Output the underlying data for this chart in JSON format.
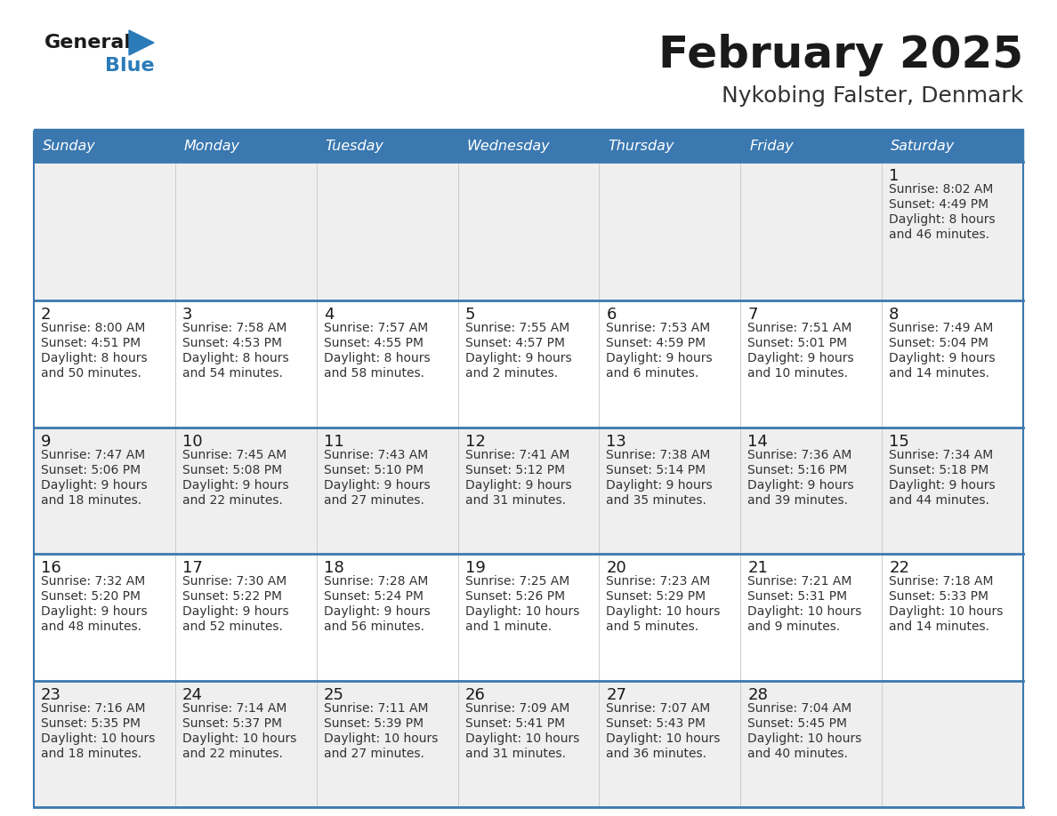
{
  "title": "February 2025",
  "subtitle": "Nykobing Falster, Denmark",
  "header_bg": "#3B78B0",
  "header_text": "#FFFFFF",
  "day_names": [
    "Sunday",
    "Monday",
    "Tuesday",
    "Wednesday",
    "Thursday",
    "Friday",
    "Saturday"
  ],
  "row_bg_even": "#EFEFEF",
  "row_bg_odd": "#FFFFFF",
  "border_color": "#3B78B0",
  "grid_color": "#CCCCCC",
  "title_color": "#1A1A1A",
  "subtitle_color": "#333333",
  "day_num_color": "#1A1A1A",
  "cell_text_color": "#333333",
  "days": [
    {
      "day": 1,
      "col": 6,
      "row": 0,
      "sunrise": "8:02 AM",
      "sunset": "4:49 PM",
      "daylight_line1": "Daylight: 8 hours",
      "daylight_line2": "and 46 minutes."
    },
    {
      "day": 2,
      "col": 0,
      "row": 1,
      "sunrise": "8:00 AM",
      "sunset": "4:51 PM",
      "daylight_line1": "Daylight: 8 hours",
      "daylight_line2": "and 50 minutes."
    },
    {
      "day": 3,
      "col": 1,
      "row": 1,
      "sunrise": "7:58 AM",
      "sunset": "4:53 PM",
      "daylight_line1": "Daylight: 8 hours",
      "daylight_line2": "and 54 minutes."
    },
    {
      "day": 4,
      "col": 2,
      "row": 1,
      "sunrise": "7:57 AM",
      "sunset": "4:55 PM",
      "daylight_line1": "Daylight: 8 hours",
      "daylight_line2": "and 58 minutes."
    },
    {
      "day": 5,
      "col": 3,
      "row": 1,
      "sunrise": "7:55 AM",
      "sunset": "4:57 PM",
      "daylight_line1": "Daylight: 9 hours",
      "daylight_line2": "and 2 minutes."
    },
    {
      "day": 6,
      "col": 4,
      "row": 1,
      "sunrise": "7:53 AM",
      "sunset": "4:59 PM",
      "daylight_line1": "Daylight: 9 hours",
      "daylight_line2": "and 6 minutes."
    },
    {
      "day": 7,
      "col": 5,
      "row": 1,
      "sunrise": "7:51 AM",
      "sunset": "5:01 PM",
      "daylight_line1": "Daylight: 9 hours",
      "daylight_line2": "and 10 minutes."
    },
    {
      "day": 8,
      "col": 6,
      "row": 1,
      "sunrise": "7:49 AM",
      "sunset": "5:04 PM",
      "daylight_line1": "Daylight: 9 hours",
      "daylight_line2": "and 14 minutes."
    },
    {
      "day": 9,
      "col": 0,
      "row": 2,
      "sunrise": "7:47 AM",
      "sunset": "5:06 PM",
      "daylight_line1": "Daylight: 9 hours",
      "daylight_line2": "and 18 minutes."
    },
    {
      "day": 10,
      "col": 1,
      "row": 2,
      "sunrise": "7:45 AM",
      "sunset": "5:08 PM",
      "daylight_line1": "Daylight: 9 hours",
      "daylight_line2": "and 22 minutes."
    },
    {
      "day": 11,
      "col": 2,
      "row": 2,
      "sunrise": "7:43 AM",
      "sunset": "5:10 PM",
      "daylight_line1": "Daylight: 9 hours",
      "daylight_line2": "and 27 minutes."
    },
    {
      "day": 12,
      "col": 3,
      "row": 2,
      "sunrise": "7:41 AM",
      "sunset": "5:12 PM",
      "daylight_line1": "Daylight: 9 hours",
      "daylight_line2": "and 31 minutes."
    },
    {
      "day": 13,
      "col": 4,
      "row": 2,
      "sunrise": "7:38 AM",
      "sunset": "5:14 PM",
      "daylight_line1": "Daylight: 9 hours",
      "daylight_line2": "and 35 minutes."
    },
    {
      "day": 14,
      "col": 5,
      "row": 2,
      "sunrise": "7:36 AM",
      "sunset": "5:16 PM",
      "daylight_line1": "Daylight: 9 hours",
      "daylight_line2": "and 39 minutes."
    },
    {
      "day": 15,
      "col": 6,
      "row": 2,
      "sunrise": "7:34 AM",
      "sunset": "5:18 PM",
      "daylight_line1": "Daylight: 9 hours",
      "daylight_line2": "and 44 minutes."
    },
    {
      "day": 16,
      "col": 0,
      "row": 3,
      "sunrise": "7:32 AM",
      "sunset": "5:20 PM",
      "daylight_line1": "Daylight: 9 hours",
      "daylight_line2": "and 48 minutes."
    },
    {
      "day": 17,
      "col": 1,
      "row": 3,
      "sunrise": "7:30 AM",
      "sunset": "5:22 PM",
      "daylight_line1": "Daylight: 9 hours",
      "daylight_line2": "and 52 minutes."
    },
    {
      "day": 18,
      "col": 2,
      "row": 3,
      "sunrise": "7:28 AM",
      "sunset": "5:24 PM",
      "daylight_line1": "Daylight: 9 hours",
      "daylight_line2": "and 56 minutes."
    },
    {
      "day": 19,
      "col": 3,
      "row": 3,
      "sunrise": "7:25 AM",
      "sunset": "5:26 PM",
      "daylight_line1": "Daylight: 10 hours",
      "daylight_line2": "and 1 minute."
    },
    {
      "day": 20,
      "col": 4,
      "row": 3,
      "sunrise": "7:23 AM",
      "sunset": "5:29 PM",
      "daylight_line1": "Daylight: 10 hours",
      "daylight_line2": "and 5 minutes."
    },
    {
      "day": 21,
      "col": 5,
      "row": 3,
      "sunrise": "7:21 AM",
      "sunset": "5:31 PM",
      "daylight_line1": "Daylight: 10 hours",
      "daylight_line2": "and 9 minutes."
    },
    {
      "day": 22,
      "col": 6,
      "row": 3,
      "sunrise": "7:18 AM",
      "sunset": "5:33 PM",
      "daylight_line1": "Daylight: 10 hours",
      "daylight_line2": "and 14 minutes."
    },
    {
      "day": 23,
      "col": 0,
      "row": 4,
      "sunrise": "7:16 AM",
      "sunset": "5:35 PM",
      "daylight_line1": "Daylight: 10 hours",
      "daylight_line2": "and 18 minutes."
    },
    {
      "day": 24,
      "col": 1,
      "row": 4,
      "sunrise": "7:14 AM",
      "sunset": "5:37 PM",
      "daylight_line1": "Daylight: 10 hours",
      "daylight_line2": "and 22 minutes."
    },
    {
      "day": 25,
      "col": 2,
      "row": 4,
      "sunrise": "7:11 AM",
      "sunset": "5:39 PM",
      "daylight_line1": "Daylight: 10 hours",
      "daylight_line2": "and 27 minutes."
    },
    {
      "day": 26,
      "col": 3,
      "row": 4,
      "sunrise": "7:09 AM",
      "sunset": "5:41 PM",
      "daylight_line1": "Daylight: 10 hours",
      "daylight_line2": "and 31 minutes."
    },
    {
      "day": 27,
      "col": 4,
      "row": 4,
      "sunrise": "7:07 AM",
      "sunset": "5:43 PM",
      "daylight_line1": "Daylight: 10 hours",
      "daylight_line2": "and 36 minutes."
    },
    {
      "day": 28,
      "col": 5,
      "row": 4,
      "sunrise": "7:04 AM",
      "sunset": "5:45 PM",
      "daylight_line1": "Daylight: 10 hours",
      "daylight_line2": "and 40 minutes."
    }
  ],
  "num_rows": 5,
  "num_cols": 7,
  "logo_text1": "General",
  "logo_text2": "Blue",
  "logo_black": "#1A1A1A",
  "logo_blue": "#2B7BB9"
}
